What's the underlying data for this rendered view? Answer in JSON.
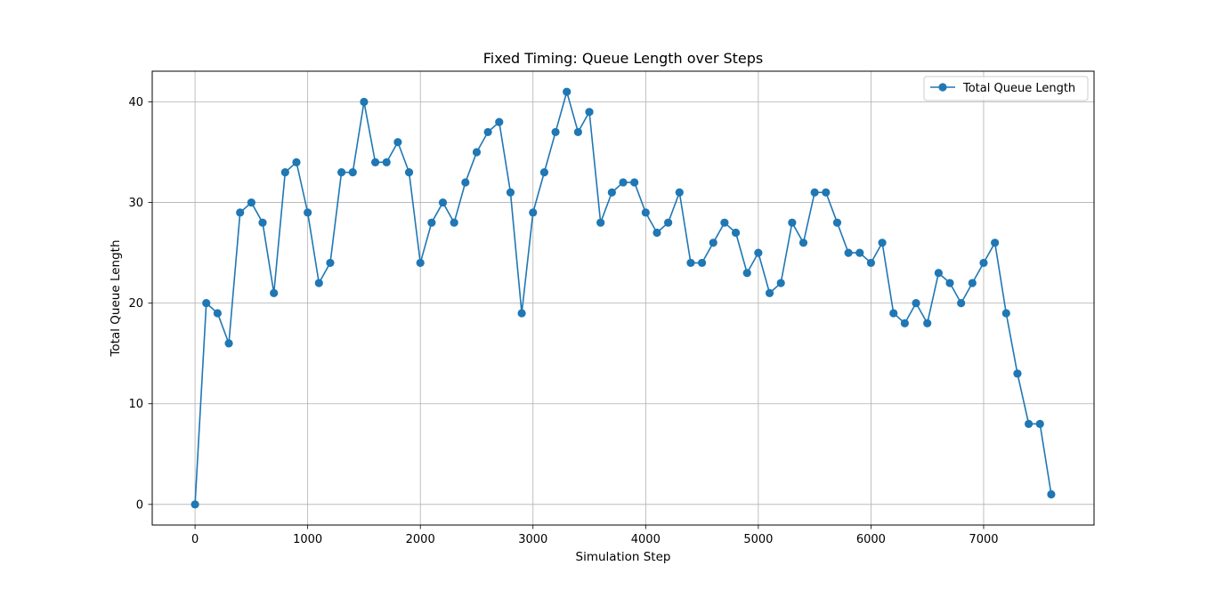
{
  "chart_data": {
    "type": "line",
    "title": "Fixed Timing: Queue Length over Steps",
    "xlabel": "Simulation Step",
    "ylabel": "Total Queue Length",
    "xlim": [
      -380,
      7980
    ],
    "ylim": [
      -2.05,
      43.05
    ],
    "xticks": [
      0,
      1000,
      2000,
      3000,
      4000,
      5000,
      6000,
      7000
    ],
    "yticks": [
      0,
      10,
      20,
      30,
      40
    ],
    "grid": true,
    "legend_position": "top-right",
    "series": [
      {
        "name": "Total Queue Length",
        "color": "#1f77b4",
        "marker": "circle",
        "x": [
          0,
          100,
          200,
          300,
          400,
          500,
          600,
          700,
          800,
          900,
          1000,
          1100,
          1200,
          1300,
          1400,
          1500,
          1600,
          1700,
          1800,
          1900,
          2000,
          2100,
          2200,
          2300,
          2400,
          2500,
          2600,
          2700,
          2800,
          2900,
          3000,
          3100,
          3200,
          3300,
          3400,
          3500,
          3600,
          3700,
          3800,
          3900,
          4000,
          4100,
          4200,
          4300,
          4400,
          4500,
          4600,
          4700,
          4800,
          4900,
          5000,
          5100,
          5200,
          5300,
          5400,
          5500,
          5600,
          5700,
          5800,
          5900,
          6000,
          6100,
          6200,
          6300,
          6400,
          6500,
          6600,
          6700,
          6800,
          6900,
          7000,
          7100,
          7200,
          7300,
          7400,
          7500,
          7600
        ],
        "y": [
          0,
          20,
          19,
          16,
          29,
          30,
          28,
          21,
          33,
          34,
          29,
          22,
          24,
          33,
          33,
          40,
          34,
          34,
          36,
          33,
          24,
          28,
          30,
          28,
          32,
          35,
          37,
          38,
          31,
          19,
          29,
          33,
          37,
          41,
          37,
          39,
          28,
          31,
          32,
          32,
          29,
          27,
          28,
          31,
          24,
          24,
          26,
          28,
          27,
          23,
          25,
          21,
          22,
          28,
          26,
          31,
          31,
          28,
          25,
          25,
          24,
          26,
          19,
          18,
          20,
          18,
          23,
          22,
          20,
          22,
          24,
          26,
          19,
          13,
          8,
          8,
          1
        ]
      }
    ]
  }
}
